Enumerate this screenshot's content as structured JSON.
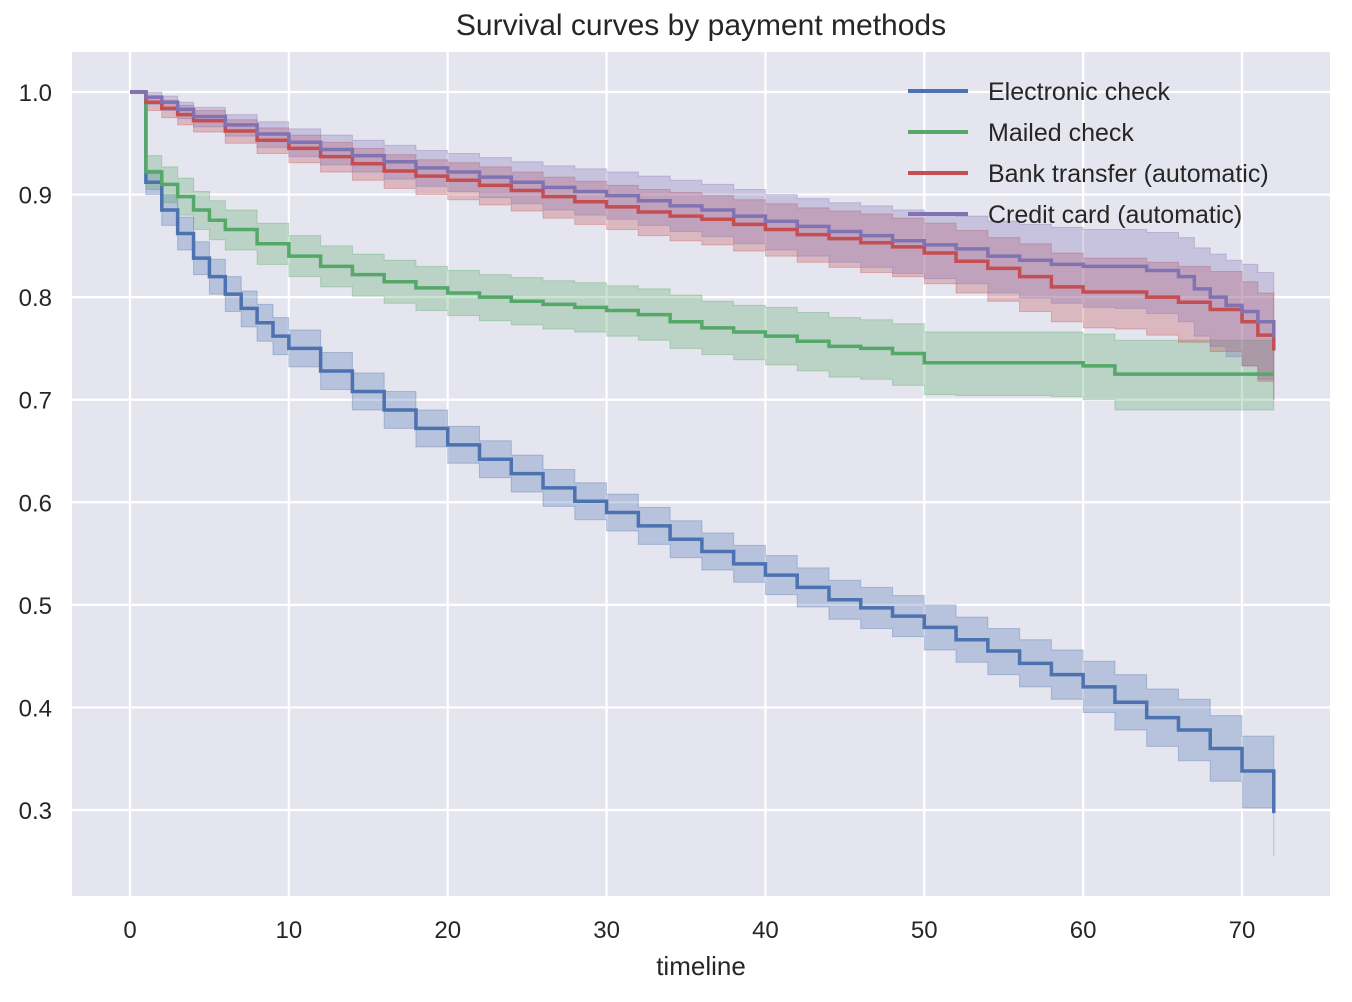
{
  "chart_data": {
    "type": "line",
    "subtype": "step-survival-with-confidence-bands",
    "title": "Survival curves by payment methods",
    "xlabel": "timeline",
    "ylabel": "",
    "xlim": [
      -3.6,
      75.5
    ],
    "ylim": [
      0.22,
      1.045
    ],
    "xticks": [
      0,
      10,
      20,
      30,
      40,
      50,
      60,
      70
    ],
    "yticks": [
      0.3,
      0.4,
      0.5,
      0.6,
      0.7,
      0.8,
      0.9,
      1.0
    ],
    "ytick_labels": [
      "0.3",
      "0.4",
      "0.5",
      "0.6",
      "0.7",
      "0.8",
      "0.9",
      "1.0"
    ],
    "grid": true,
    "legend_position": "top-right",
    "background": "#e5e5ef",
    "series": [
      {
        "name": "Electronic check",
        "color": "#4c72b0",
        "x": [
          0,
          1,
          2,
          3,
          4,
          5,
          6,
          7,
          8,
          9,
          10,
          12,
          14,
          16,
          18,
          20,
          22,
          24,
          26,
          28,
          30,
          32,
          34,
          36,
          38,
          40,
          42,
          44,
          46,
          48,
          50,
          52,
          54,
          56,
          58,
          60,
          62,
          64,
          66,
          68,
          70,
          72
        ],
        "y": [
          1.0,
          0.912,
          0.885,
          0.862,
          0.838,
          0.82,
          0.803,
          0.789,
          0.775,
          0.762,
          0.75,
          0.728,
          0.708,
          0.69,
          0.672,
          0.656,
          0.642,
          0.628,
          0.614,
          0.601,
          0.59,
          0.577,
          0.564,
          0.552,
          0.54,
          0.529,
          0.517,
          0.505,
          0.497,
          0.489,
          0.478,
          0.466,
          0.455,
          0.443,
          0.432,
          0.42,
          0.405,
          0.39,
          0.378,
          0.36,
          0.338,
          0.297
        ],
        "lower": [
          1.0,
          0.9,
          0.87,
          0.846,
          0.822,
          0.803,
          0.786,
          0.771,
          0.757,
          0.744,
          0.732,
          0.71,
          0.69,
          0.672,
          0.654,
          0.638,
          0.624,
          0.61,
          0.596,
          0.583,
          0.572,
          0.559,
          0.546,
          0.534,
          0.522,
          0.51,
          0.498,
          0.486,
          0.477,
          0.469,
          0.456,
          0.444,
          0.432,
          0.42,
          0.408,
          0.395,
          0.378,
          0.362,
          0.348,
          0.328,
          0.302,
          0.255
        ],
        "upper": [
          1.0,
          0.924,
          0.9,
          0.878,
          0.854,
          0.837,
          0.82,
          0.806,
          0.793,
          0.78,
          0.768,
          0.746,
          0.726,
          0.708,
          0.69,
          0.674,
          0.66,
          0.646,
          0.632,
          0.619,
          0.608,
          0.595,
          0.582,
          0.57,
          0.558,
          0.548,
          0.536,
          0.524,
          0.517,
          0.509,
          0.5,
          0.488,
          0.477,
          0.466,
          0.456,
          0.445,
          0.432,
          0.418,
          0.408,
          0.392,
          0.372,
          0.352
        ]
      },
      {
        "name": "Mailed check",
        "color": "#55a868",
        "x": [
          0,
          1,
          2,
          3,
          4,
          5,
          6,
          8,
          10,
          12,
          14,
          16,
          18,
          20,
          22,
          24,
          26,
          28,
          30,
          32,
          34,
          36,
          38,
          40,
          42,
          44,
          46,
          48,
          50,
          52,
          54,
          56,
          58,
          60,
          62,
          64,
          66,
          68,
          70,
          72
        ],
        "y": [
          1.0,
          0.922,
          0.91,
          0.898,
          0.885,
          0.875,
          0.866,
          0.852,
          0.84,
          0.83,
          0.822,
          0.815,
          0.809,
          0.804,
          0.8,
          0.796,
          0.793,
          0.79,
          0.787,
          0.783,
          0.776,
          0.77,
          0.766,
          0.762,
          0.757,
          0.752,
          0.75,
          0.745,
          0.736,
          0.736,
          0.736,
          0.736,
          0.736,
          0.733,
          0.725,
          0.725,
          0.725,
          0.725,
          0.725,
          0.725
        ],
        "lower": [
          1.0,
          0.905,
          0.892,
          0.88,
          0.866,
          0.856,
          0.846,
          0.832,
          0.82,
          0.81,
          0.801,
          0.794,
          0.787,
          0.782,
          0.777,
          0.773,
          0.769,
          0.766,
          0.762,
          0.758,
          0.75,
          0.744,
          0.739,
          0.734,
          0.728,
          0.722,
          0.72,
          0.714,
          0.705,
          0.704,
          0.704,
          0.704,
          0.703,
          0.7,
          0.69,
          0.69,
          0.69,
          0.69,
          0.69,
          0.69
        ],
        "upper": [
          1.0,
          0.938,
          0.927,
          0.916,
          0.903,
          0.894,
          0.885,
          0.872,
          0.86,
          0.85,
          0.842,
          0.836,
          0.83,
          0.826,
          0.822,
          0.819,
          0.816,
          0.814,
          0.811,
          0.808,
          0.802,
          0.796,
          0.792,
          0.79,
          0.785,
          0.78,
          0.778,
          0.774,
          0.766,
          0.766,
          0.766,
          0.766,
          0.766,
          0.764,
          0.758,
          0.758,
          0.758,
          0.758,
          0.758,
          0.758
        ]
      },
      {
        "name": "Bank transfer (automatic)",
        "color": "#c44e52",
        "x": [
          0,
          1,
          2,
          3,
          4,
          6,
          8,
          10,
          12,
          14,
          16,
          18,
          20,
          22,
          24,
          26,
          28,
          30,
          32,
          34,
          36,
          38,
          40,
          42,
          44,
          46,
          48,
          50,
          52,
          54,
          56,
          58,
          60,
          62,
          64,
          66,
          68,
          70,
          71,
          72
        ],
        "y": [
          1.0,
          0.99,
          0.984,
          0.978,
          0.972,
          0.962,
          0.953,
          0.945,
          0.937,
          0.93,
          0.923,
          0.918,
          0.914,
          0.909,
          0.904,
          0.898,
          0.893,
          0.888,
          0.883,
          0.879,
          0.876,
          0.871,
          0.866,
          0.861,
          0.857,
          0.853,
          0.849,
          0.843,
          0.835,
          0.828,
          0.82,
          0.81,
          0.805,
          0.805,
          0.8,
          0.795,
          0.788,
          0.776,
          0.763,
          0.748
        ],
        "lower": [
          1.0,
          0.982,
          0.975,
          0.968,
          0.961,
          0.95,
          0.94,
          0.931,
          0.922,
          0.914,
          0.906,
          0.9,
          0.895,
          0.89,
          0.884,
          0.877,
          0.871,
          0.866,
          0.86,
          0.855,
          0.851,
          0.845,
          0.84,
          0.834,
          0.829,
          0.824,
          0.82,
          0.813,
          0.804,
          0.796,
          0.786,
          0.776,
          0.77,
          0.769,
          0.763,
          0.756,
          0.747,
          0.733,
          0.718,
          0.7
        ],
        "upper": [
          1.0,
          0.996,
          0.992,
          0.987,
          0.982,
          0.973,
          0.965,
          0.958,
          0.951,
          0.945,
          0.939,
          0.934,
          0.931,
          0.927,
          0.922,
          0.917,
          0.913,
          0.909,
          0.905,
          0.902,
          0.899,
          0.895,
          0.891,
          0.887,
          0.884,
          0.881,
          0.877,
          0.872,
          0.865,
          0.858,
          0.852,
          0.843,
          0.838,
          0.838,
          0.834,
          0.83,
          0.825,
          0.815,
          0.804,
          0.795
        ]
      },
      {
        "name": "Credit card (automatic)",
        "color": "#8172b2",
        "x": [
          0,
          1,
          2,
          3,
          4,
          6,
          8,
          10,
          12,
          14,
          16,
          18,
          20,
          22,
          24,
          26,
          28,
          30,
          32,
          34,
          36,
          38,
          40,
          42,
          44,
          46,
          48,
          50,
          52,
          54,
          56,
          58,
          60,
          62,
          64,
          66,
          67,
          68,
          69,
          70,
          71,
          72
        ],
        "y": [
          1.0,
          0.995,
          0.99,
          0.983,
          0.976,
          0.968,
          0.959,
          0.951,
          0.944,
          0.938,
          0.932,
          0.926,
          0.922,
          0.917,
          0.912,
          0.907,
          0.903,
          0.899,
          0.894,
          0.889,
          0.885,
          0.879,
          0.874,
          0.869,
          0.864,
          0.86,
          0.855,
          0.851,
          0.847,
          0.84,
          0.836,
          0.832,
          0.83,
          0.83,
          0.826,
          0.82,
          0.808,
          0.8,
          0.792,
          0.786,
          0.776,
          0.76
        ],
        "lower": [
          1.0,
          0.988,
          0.982,
          0.974,
          0.966,
          0.957,
          0.946,
          0.937,
          0.929,
          0.922,
          0.915,
          0.908,
          0.903,
          0.897,
          0.891,
          0.885,
          0.88,
          0.876,
          0.87,
          0.864,
          0.859,
          0.852,
          0.846,
          0.84,
          0.834,
          0.829,
          0.823,
          0.818,
          0.813,
          0.804,
          0.799,
          0.794,
          0.79,
          0.789,
          0.784,
          0.776,
          0.762,
          0.752,
          0.742,
          0.733,
          0.72,
          0.7
        ],
        "upper": [
          1.0,
          1.0,
          0.996,
          0.99,
          0.985,
          0.978,
          0.971,
          0.964,
          0.958,
          0.953,
          0.948,
          0.943,
          0.94,
          0.936,
          0.932,
          0.928,
          0.925,
          0.922,
          0.918,
          0.914,
          0.91,
          0.905,
          0.9,
          0.896,
          0.892,
          0.889,
          0.885,
          0.882,
          0.879,
          0.874,
          0.871,
          0.868,
          0.866,
          0.866,
          0.863,
          0.858,
          0.848,
          0.842,
          0.836,
          0.832,
          0.824,
          0.812
        ]
      }
    ]
  }
}
